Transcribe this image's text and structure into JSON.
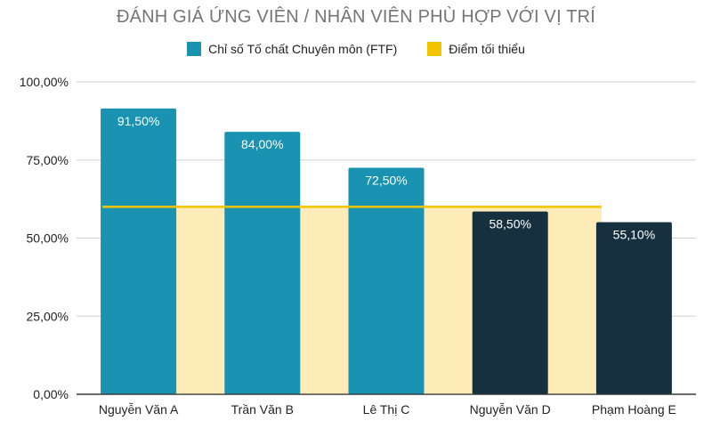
{
  "chart_data": {
    "type": "bar",
    "title": "ĐÁNH GIÁ ỨNG VIÊN / NHÂN VIÊN PHÙ HỢP VỚI VỊ TRÍ",
    "categories": [
      "Nguyễn Văn A",
      "Trần Văn B",
      "Lê Thị C",
      "Nguyễn Văn D",
      "Phạm Hoàng E"
    ],
    "series": [
      {
        "name": "Chỉ số Tố chất Chuyên môn (FTF)",
        "values": [
          91.5,
          84.0,
          72.5,
          58.5,
          55.1
        ],
        "value_labels": [
          "91,50%",
          "84,00%",
          "72,50%",
          "58,50%",
          "55,10%"
        ],
        "bar_colors": [
          "#1a93b2",
          "#1a93b2",
          "#1a93b2",
          "#16303f",
          "#16303f"
        ]
      },
      {
        "name": "Điểm tối thiểu",
        "type": "line",
        "values": [
          60,
          60,
          60,
          60,
          60
        ],
        "color": "#f2c400",
        "area_color": "#fdebb8"
      }
    ],
    "y_ticks": [
      "0,00%",
      "25,00%",
      "50,00%",
      "75,00%",
      "100,00%"
    ],
    "y_tick_values": [
      0,
      25,
      50,
      75,
      100
    ],
    "ylim": [
      0,
      100
    ],
    "grid": true,
    "legend_position": "top"
  },
  "legend": {
    "ftf_label": "Chỉ số Tố chất Chuyên môn (FTF)",
    "ftf_color": "#1a93b2",
    "min_label": "Điểm tối thiểu",
    "min_color": "#f2c400"
  }
}
